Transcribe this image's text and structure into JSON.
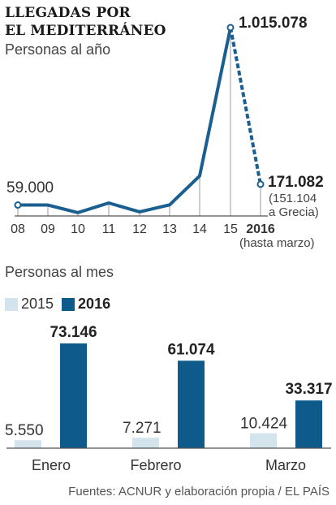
{
  "header": {
    "title_line1": "LLEGADAS POR",
    "title_line2": "EL MEDITERRÁNEO",
    "subtitle": "Personas al año"
  },
  "section2": {
    "title": "Personas al mes"
  },
  "legend": {
    "items": [
      {
        "label": "2015",
        "color": "#d4e4ec"
      },
      {
        "label": "2016",
        "color": "#0e5a8a"
      }
    ]
  },
  "footer": {
    "source": "Fuentes: ACNUR y elaboración propia / EL PAÍS"
  },
  "colors": {
    "line": "#1b5f91",
    "light": "#d4e4ec",
    "dark": "#0e5a8a",
    "grid": "#999999"
  },
  "chart_data": [
    {
      "type": "line",
      "title": "Personas al año",
      "x": [
        "08",
        "09",
        "10",
        "11",
        "12",
        "13",
        "14",
        "15",
        "2016"
      ],
      "x_extra_label": "(hasta marzo)",
      "series": [
        {
          "values": [
            59000,
            59000,
            18000,
            70000,
            22000,
            60000,
            216000,
            1015078,
            171082
          ]
        }
      ],
      "annotations": [
        {
          "x": "08",
          "text": "59.000"
        },
        {
          "x": "15",
          "text": "1.015.078"
        },
        {
          "x": "2016",
          "text": "171.082",
          "note_line1": "(151.104",
          "note_line2": "a Grecia)"
        }
      ],
      "ylim": [
        0,
        1100000
      ],
      "dashed_last_segment": true
    },
    {
      "type": "bar",
      "title": "Personas al mes",
      "categories": [
        "Enero",
        "Febrero",
        "Marzo"
      ],
      "series": [
        {
          "name": "2015",
          "values": [
            5550,
            7271,
            10424
          ],
          "labels": [
            "5.550",
            "7.271",
            "10.424"
          ]
        },
        {
          "name": "2016",
          "values": [
            73146,
            61074,
            33317
          ],
          "labels": [
            "73.146",
            "61.074",
            "33.317"
          ]
        }
      ],
      "ylim": [
        0,
        75000
      ]
    }
  ]
}
